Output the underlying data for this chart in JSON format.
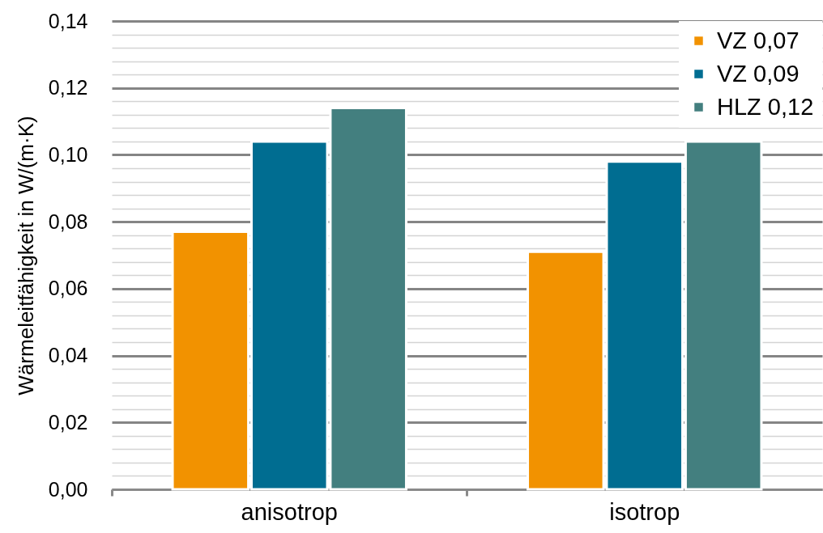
{
  "chart_data": {
    "type": "bar",
    "ylabel": "Wärmeleitfähigkeit in W/(m·K)",
    "categories": [
      "anisotrop",
      "isotrop"
    ],
    "series": [
      {
        "name": "VZ 0,07",
        "color": "#f29200",
        "values": [
          0.077,
          0.071
        ]
      },
      {
        "name": "VZ 0,09",
        "color": "#006d91",
        "values": [
          0.104,
          0.098
        ]
      },
      {
        "name": "HLZ 0,12",
        "color": "#437f7f",
        "values": [
          0.114,
          0.104
        ]
      }
    ],
    "ylim": [
      0,
      0.14
    ],
    "yticks": [
      {
        "value": 0,
        "label": "0,00"
      },
      {
        "value": 0.004,
        "label": null
      },
      {
        "value": 0.008,
        "label": null
      },
      {
        "value": 0.012,
        "label": null
      },
      {
        "value": 0.016,
        "label": null
      },
      {
        "value": 0.02,
        "label": "0,02"
      },
      {
        "value": 0.024,
        "label": null
      },
      {
        "value": 0.028,
        "label": null
      },
      {
        "value": 0.032,
        "label": null
      },
      {
        "value": 0.036,
        "label": null
      },
      {
        "value": 0.04,
        "label": "0,04"
      },
      {
        "value": 0.044,
        "label": null
      },
      {
        "value": 0.048,
        "label": null
      },
      {
        "value": 0.052,
        "label": null
      },
      {
        "value": 0.056,
        "label": null
      },
      {
        "value": 0.06,
        "label": "0,06"
      },
      {
        "value": 0.064,
        "label": null
      },
      {
        "value": 0.068,
        "label": null
      },
      {
        "value": 0.072,
        "label": null
      },
      {
        "value": 0.076,
        "label": null
      },
      {
        "value": 0.08,
        "label": "0,08"
      },
      {
        "value": 0.084,
        "label": null
      },
      {
        "value": 0.088,
        "label": null
      },
      {
        "value": 0.092,
        "label": null
      },
      {
        "value": 0.096,
        "label": null
      },
      {
        "value": 0.1,
        "label": "0,10"
      },
      {
        "value": 0.104,
        "label": null
      },
      {
        "value": 0.108,
        "label": null
      },
      {
        "value": 0.112,
        "label": null
      },
      {
        "value": 0.116,
        "label": null
      },
      {
        "value": 0.12,
        "label": "0,12"
      },
      {
        "value": 0.124,
        "label": null
      },
      {
        "value": 0.128,
        "label": null
      },
      {
        "value": 0.132,
        "label": null
      },
      {
        "value": 0.136,
        "label": null
      },
      {
        "value": 0.14,
        "label": "0,14"
      }
    ],
    "grid": "y",
    "legend": "top right"
  }
}
